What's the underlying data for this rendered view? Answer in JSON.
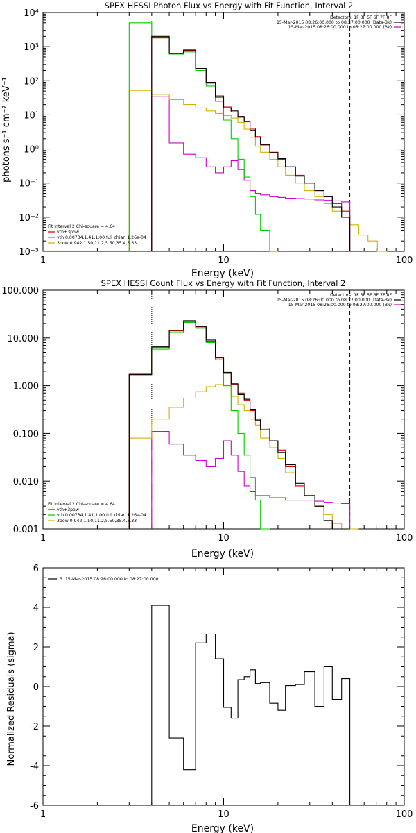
{
  "chart_data": [
    {
      "type": "line",
      "title": "SPEX HESSI Photon Flux vs Energy with Fit Function, Interval 2",
      "xlabel": "Energy (keV)",
      "ylabel": "photons s⁻¹ cm⁻² keV⁻¹",
      "xscale": "log",
      "yscale": "log",
      "xlim": [
        1,
        100
      ],
      "ylim": [
        0.001,
        10000
      ],
      "xticks": [
        {
          "v": 1,
          "label": "1"
        },
        {
          "v": 10,
          "label": "10"
        },
        {
          "v": 100,
          "label": "100"
        }
      ],
      "yticks": [
        {
          "v": 0.001,
          "label": "10⁻³"
        },
        {
          "v": 0.01,
          "label": "10⁻²"
        },
        {
          "v": 0.1,
          "label": "10⁻¹"
        },
        {
          "v": 1,
          "label": "10⁰"
        },
        {
          "v": 10,
          "label": "10¹"
        },
        {
          "v": 100,
          "label": "10²"
        },
        {
          "v": 1000,
          "label": "10³"
        },
        {
          "v": 10000,
          "label": "10⁴"
        }
      ],
      "vlines": [
        {
          "x": 4.0,
          "style": "dotted",
          "color": "#cc00cc"
        },
        {
          "x": 50,
          "style": "dashed",
          "color": "#000000"
        }
      ],
      "legend_top_right": [
        {
          "text": "Detectors: 1F 3F 5F 6F 7F 8F",
          "color": ""
        },
        {
          "text": "15-Mar-2015 08:26:00.000 to 08:27:00.000 (Data-Bk)",
          "color": "#000000"
        },
        {
          "text": "15-Mar-2015 08:26:00.000 to 08:27:00.000 (Bk)",
          "color": "#cc00cc"
        }
      ],
      "legend_bottom_left": [
        {
          "text": "Fit Interval 2   Chi-square = 4.64",
          "color": ""
        },
        {
          "text": "vth+3pow",
          "color": "#cc0000"
        },
        {
          "text": "vth 0.00734,1.41,1.00  full chian 1.26e-04",
          "color": "#00cc00"
        },
        {
          "text": "3pow 0.942,1.50,11.2,5.50,35.4,3.33",
          "color": "#d4b000"
        }
      ],
      "edges": [
        3.0,
        4.0,
        5.0,
        6.0,
        7.0,
        8.0,
        9.0,
        10.0,
        11.0,
        12.0,
        13.0,
        14.0,
        15.0,
        16.0,
        18.0,
        20.0,
        22.0,
        25.0,
        28.0,
        32.0,
        36.0,
        40.0,
        45.0,
        50.0,
        56.0,
        63.0,
        71.0,
        80.0
      ],
      "series": [
        {
          "color": "#cc00cc",
          "start": 1,
          "values": [
            35,
            1.5,
            0.7,
            0.55,
            0.3,
            0.2,
            0.3,
            0.45,
            0.25,
            0.12,
            0.06,
            0.05,
            0.045,
            0.04,
            0.038,
            0.036,
            0.035,
            0.034,
            0.032,
            0.031,
            0.03,
            0.028
          ]
        },
        {
          "color": "#d4b000",
          "start": 0,
          "values": [
            52,
            40,
            28,
            20,
            16,
            13,
            11,
            9.5,
            8,
            6,
            3.8,
            2.2,
            1.2,
            0.8,
            0.5,
            0.3,
            0.17,
            0.1,
            0.06,
            0.04,
            0.025,
            0.015,
            0.01,
            0.006,
            0.003,
            0.002,
            0.001
          ]
        },
        {
          "color": "#00cc00",
          "start": 0,
          "values": [
            5000,
            1800,
            600,
            700,
            200,
            70,
            25,
            7,
            2,
            0.5,
            0.15,
            0.04,
            0.012,
            0.004,
            0.001
          ]
        },
        {
          "color": "#cc0000",
          "start": 1,
          "values": [
            1800,
            620,
            780,
            220,
            85,
            36,
            17,
            12,
            8.5,
            6.2,
            4,
            2.3,
            1.3,
            0.8,
            0.5,
            0.3,
            0.17,
            0.1,
            0.06,
            0.04,
            0.025,
            0.015
          ]
        },
        {
          "color": "#000000",
          "start": 1,
          "values": [
            2000,
            640,
            800,
            230,
            90,
            33,
            16,
            13,
            9,
            6.5,
            3.6,
            2.2,
            1.35,
            0.78,
            0.52,
            0.3,
            0.16,
            0.1,
            0.06,
            0.04,
            0.02,
            0.01
          ]
        }
      ]
    },
    {
      "type": "line",
      "title": "SPEX HESSI Count Flux vs Energy with Fit Function, Interval 2",
      "xlabel": "Energy (keV)",
      "ylabel": "",
      "xscale": "log",
      "yscale": "log",
      "xlim": [
        1,
        100
      ],
      "ylim": [
        0.001,
        100
      ],
      "xticks": [
        {
          "v": 1,
          "label": "1"
        },
        {
          "v": 10,
          "label": "10"
        },
        {
          "v": 100,
          "label": "100"
        }
      ],
      "yticks": [
        {
          "v": 0.001,
          "label": "0.001"
        },
        {
          "v": 0.01,
          "label": "0.010"
        },
        {
          "v": 0.1,
          "label": "0.100"
        },
        {
          "v": 1,
          "label": "1.000"
        },
        {
          "v": 10,
          "label": "10.000"
        },
        {
          "v": 100,
          "label": "100.000"
        }
      ],
      "vlines": [
        {
          "x": 4.0,
          "style": "dotted",
          "color": "#000000"
        },
        {
          "x": 50,
          "style": "dashed",
          "color": "#000000"
        }
      ],
      "legend_top_right": [
        {
          "text": "Detectors: 1F 3F 5F 6F 7F 8F",
          "color": ""
        },
        {
          "text": "15-Mar-2015 08:26:00.000 to 08:27:00.000 (Data-Bk)",
          "color": "#000000"
        },
        {
          "text": "15-Mar-2015 08:26:00.000 to 08:27:00.000 (Bk)",
          "color": "#cc00cc"
        }
      ],
      "legend_bottom_left": [
        {
          "text": "Fit Interval 2   Chi-square = 4.64",
          "color": ""
        },
        {
          "text": "vth+3pow",
          "color": "#cc0000"
        },
        {
          "text": "vth 0.00734,1.41,1.00  full chian 1.26e-04",
          "color": "#00cc00"
        },
        {
          "text": "3pow 0.942,1.50,11.2,5.50,35.4,3.33",
          "color": "#d4b000"
        }
      ],
      "edges": [
        3.0,
        4.0,
        5.0,
        6.0,
        7.0,
        8.0,
        9.0,
        10.0,
        11.0,
        12.0,
        13.0,
        14.0,
        15.0,
        16.0,
        18.0,
        20.0,
        22.0,
        25.0,
        28.0,
        32.0,
        36.0,
        40.0,
        45.0,
        50.0,
        56.0,
        63.0
      ],
      "series": [
        {
          "color": "#cc00cc",
          "start": 1,
          "values": [
            0.11,
            0.06,
            0.035,
            0.027,
            0.02,
            0.03,
            0.07,
            0.035,
            0.016,
            0.008,
            0.006,
            0.005,
            0.005,
            0.0045,
            0.0045,
            0.004,
            0.004,
            0.004,
            0.0038,
            0.0036,
            0.0035,
            0.0034
          ]
        },
        {
          "color": "#d4b000",
          "start": 0,
          "values": [
            0.08,
            0.2,
            0.35,
            0.55,
            0.75,
            0.95,
            1.05,
            1.0,
            0.6,
            0.4,
            0.3,
            0.2,
            0.15,
            0.08,
            0.05,
            0.03,
            0.015,
            0.008,
            0.005,
            0.003,
            0.002,
            0.0013,
            0.001,
            0.001
          ]
        },
        {
          "color": "#00cc00",
          "start": 0,
          "values": [
            1.7,
            5.8,
            13,
            21,
            16,
            8,
            3.5,
            1.0,
            0.3,
            0.1,
            0.035,
            0.012,
            0.004,
            0.001
          ]
        },
        {
          "color": "#cc0000",
          "start": 0,
          "values": [
            1.75,
            6.2,
            14,
            22,
            17,
            8.5,
            3.8,
            1.8,
            1.05,
            0.7,
            0.5,
            0.3,
            0.2,
            0.13,
            0.07,
            0.045,
            0.02,
            0.008,
            0.005,
            0.003,
            0.0015,
            0.001
          ]
        },
        {
          "color": "#000000",
          "start": 0,
          "values": [
            1.7,
            6.5,
            14.5,
            23,
            17.5,
            9,
            3.9,
            1.9,
            1.1,
            0.65,
            0.52,
            0.32,
            0.19,
            0.12,
            0.07,
            0.04,
            0.022,
            0.009,
            0.005,
            0.003,
            0.0015,
            0.001,
            0.001
          ]
        }
      ]
    },
    {
      "type": "line",
      "title": "",
      "xlabel": "Energy (keV)",
      "ylabel": "Normalized Residuals (sigma)",
      "xscale": "log",
      "yscale": "linear",
      "xlim": [
        1,
        100
      ],
      "ylim": [
        -6,
        6
      ],
      "xticks": [
        {
          "v": 1,
          "label": "1"
        },
        {
          "v": 10,
          "label": "10"
        },
        {
          "v": 100,
          "label": "100"
        }
      ],
      "yticks": [
        {
          "v": -6,
          "label": "-6"
        },
        {
          "v": -4,
          "label": "-4"
        },
        {
          "v": -2,
          "label": "-2"
        },
        {
          "v": 0,
          "label": "0"
        },
        {
          "v": 2,
          "label": "2"
        },
        {
          "v": 4,
          "label": "4"
        },
        {
          "v": 6,
          "label": "6"
        }
      ],
      "legend_top_left": {
        "text": "3. 15-Mar-2015 08:26:00.000 to 08:27:00.000",
        "color": "#000000"
      },
      "edges": [
        4.0,
        5.0,
        6.0,
        7.0,
        8.0,
        9.0,
        10.0,
        11.0,
        12.0,
        13.0,
        14.0,
        15.0,
        16.0,
        18.0,
        20.0,
        22.0,
        25.0,
        28.0,
        32.0,
        36.0,
        40.0,
        45.0,
        50.0
      ],
      "series": [
        {
          "color": "#000000",
          "start": 0,
          "values": [
            4.1,
            -2.6,
            -4.2,
            2.2,
            2.65,
            1.4,
            -1.05,
            -1.6,
            0.35,
            0.5,
            0.85,
            0.15,
            0.2,
            -0.85,
            -1.2,
            0.05,
            0.1,
            0.75,
            -1.0,
            1.0,
            -0.65,
            0.4
          ]
        }
      ]
    }
  ]
}
